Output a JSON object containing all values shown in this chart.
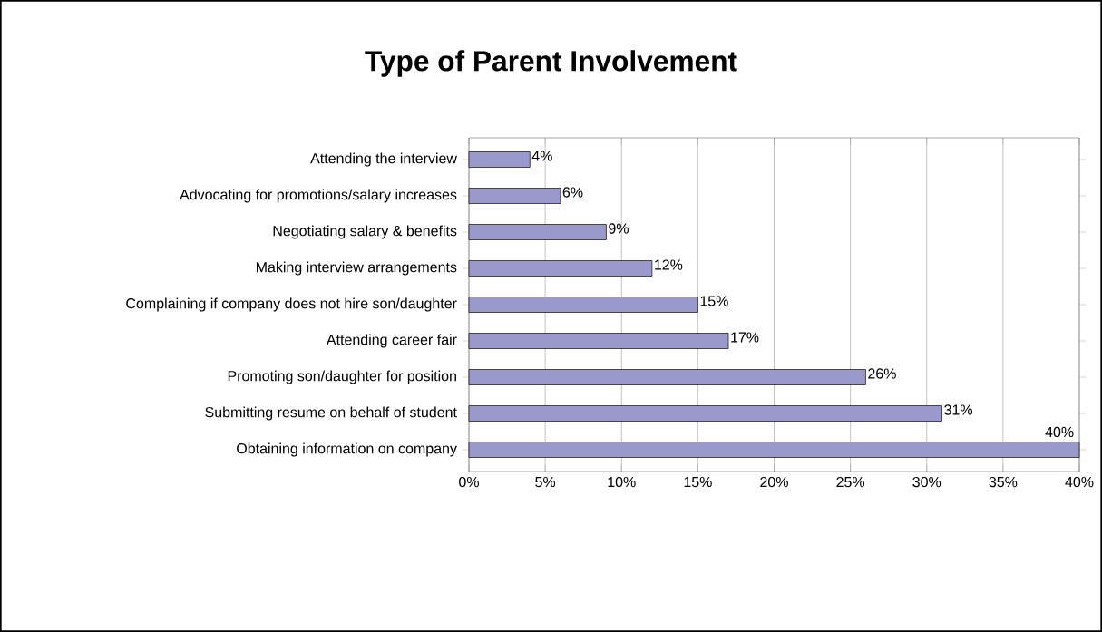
{
  "chart_data": {
    "type": "bar",
    "orientation": "horizontal",
    "title": "Type of Parent Involvement",
    "categories": [
      "Attending the interview",
      "Advocating for promotions/salary increases",
      "Negotiating salary & benefits",
      "Making interview arrangements",
      "Complaining if company does not hire son/daughter",
      "Attending career fair",
      "Promoting son/daughter for position",
      "Submitting resume on behalf of student",
      "Obtaining information on company"
    ],
    "values": [
      4,
      6,
      9,
      12,
      15,
      17,
      26,
      31,
      40
    ],
    "value_labels": [
      "4%",
      "6%",
      "9%",
      "12%",
      "15%",
      "17%",
      "26%",
      "31%",
      "40%"
    ],
    "color": "#9999cc",
    "xlim": [
      0,
      40
    ],
    "xticks": [
      {
        "value": 0,
        "label": "0%"
      },
      {
        "value": 5,
        "label": "5%"
      },
      {
        "value": 10,
        "label": "10%"
      },
      {
        "value": 15,
        "label": "15%"
      },
      {
        "value": 20,
        "label": "20%"
      },
      {
        "value": 25,
        "label": "25%"
      },
      {
        "value": 30,
        "label": "30%"
      },
      {
        "value": 35,
        "label": "35%"
      },
      {
        "value": 40,
        "label": "40%"
      }
    ],
    "grid": "x"
  }
}
